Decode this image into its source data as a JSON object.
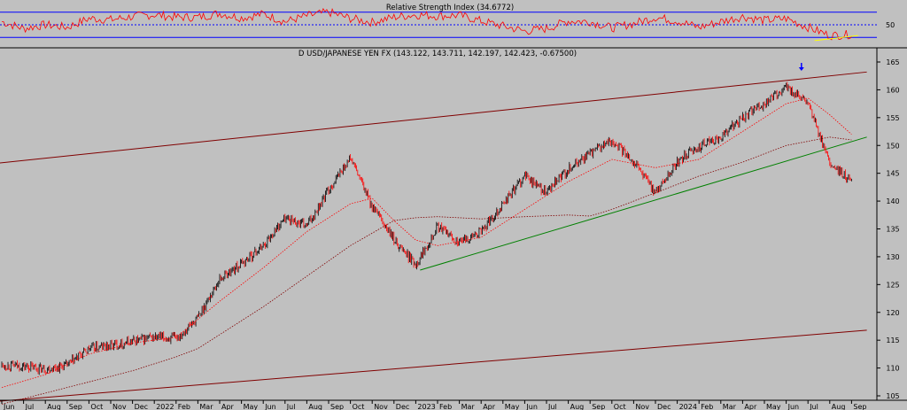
{
  "chart_data": [
    {
      "type": "line",
      "title": "Relative Strength Index (34.6772)",
      "current_value": 34.6772,
      "ylim": [
        15,
        85
      ],
      "yticks": [
        50
      ],
      "reference_lines": [
        30,
        50,
        70
      ],
      "series": [
        {
          "x_month_index": [
            0,
            1,
            2,
            3,
            4,
            5,
            6,
            7,
            8,
            9,
            10,
            11,
            12,
            13,
            14,
            15,
            16,
            17,
            18,
            19,
            20,
            21,
            22,
            23,
            24,
            25,
            26,
            27,
            28,
            29,
            30,
            31,
            32,
            33,
            34,
            35,
            36,
            37,
            38,
            39
          ],
          "values": [
            55,
            44,
            50,
            46,
            60,
            58,
            63,
            66,
            62,
            62,
            68,
            61,
            67,
            55,
            64,
            70,
            60,
            54,
            62,
            66,
            64,
            65,
            56,
            48,
            40,
            44,
            56,
            55,
            45,
            52,
            62,
            56,
            46,
            55,
            63,
            57,
            60,
            46,
            33,
            35
          ],
          "color": "#ff0000"
        },
        {
          "name": "",
          "x_month_index": [
            37.3,
            39.3
          ],
          "values": [
            25,
            33
          ],
          "color": "#ffff00"
        }
      ]
    },
    {
      "type": "line",
      "title": "D USD/JAPANESE YEN FX (143.122, 143.711, 142.197, 142.423, -0.67500)",
      "last_bar": {
        "open": 143.122,
        "high": 143.711,
        "low": 142.197,
        "close": 142.423,
        "change": -0.675
      },
      "ylim": [
        102.5,
        167
      ],
      "yticks": [
        105,
        110,
        115,
        120,
        125,
        130,
        135,
        140,
        145,
        150,
        155,
        160,
        165
      ],
      "x_labels": [
        "Jun",
        "Jul",
        "Aug",
        "Sep",
        "Oct",
        "Nov",
        "Dec",
        "2022",
        "Feb",
        "Mar",
        "Apr",
        "May",
        "Jun",
        "Jul",
        "Aug",
        "Sep",
        "Oct",
        "Nov",
        "Dec",
        "2023",
        "Feb",
        "Mar",
        "Apr",
        "May",
        "Jun",
        "Jul",
        "Aug",
        "Sep",
        "Oct",
        "Nov",
        "Dec",
        "2024",
        "Feb",
        "Mar",
        "Apr",
        "May",
        "Jun",
        "Jul",
        "Aug",
        "Sep"
      ],
      "series": [
        {
          "x_month_index": [
            0,
            1,
            2,
            3,
            4,
            5,
            6,
            7,
            8,
            9,
            10,
            11,
            12,
            13,
            14,
            15,
            16,
            17,
            18,
            19,
            20,
            21,
            22,
            23,
            24,
            25,
            26,
            27,
            28,
            29,
            30,
            31,
            32,
            33,
            34,
            35,
            36,
            37,
            38,
            39
          ],
          "values": [
            110.5,
            110.3,
            109.8,
            110.5,
            113.5,
            114.0,
            114.8,
            115.5,
            115.3,
            119.0,
            126.0,
            128.7,
            132.0,
            137.0,
            135.5,
            142.0,
            147.8,
            139.0,
            133.0,
            128.6,
            135.5,
            132.5,
            134.5,
            139.5,
            144.5,
            141.5,
            145.7,
            148.5,
            150.8,
            147.2,
            141.5,
            147.0,
            149.8,
            151.5,
            155.0,
            157.5,
            160.5,
            157.5,
            146.5,
            143.5
          ],
          "colors_up_down": [
            "#000000",
            "#ff0000"
          ]
        },
        {
          "x_month_index": [
            0,
            2,
            4,
            6,
            8,
            10,
            12,
            14,
            16,
            17,
            18,
            19,
            20,
            22,
            24,
            26,
            28,
            30,
            32,
            34,
            36,
            37,
            38,
            39
          ],
          "values": [
            106.5,
            108.8,
            112.5,
            114.5,
            115.5,
            122.0,
            128.0,
            134.5,
            139.5,
            140.5,
            136.5,
            133.0,
            132.0,
            133.5,
            138.5,
            143.5,
            147.5,
            146.0,
            147.5,
            152.5,
            157.5,
            158.5,
            155.5,
            152.0
          ],
          "color": "#ff0000",
          "style": "dotted"
        },
        {
          "x_month_index": [
            0,
            2,
            4,
            6,
            8,
            9,
            10,
            12,
            14,
            16,
            18,
            19,
            20,
            21,
            22,
            24,
            26,
            27,
            28,
            30,
            32,
            34,
            36,
            38,
            39
          ],
          "values": [
            103.5,
            105.5,
            107.5,
            109.5,
            112.0,
            113.5,
            116.0,
            121.0,
            126.5,
            132.0,
            136.5,
            137.0,
            137.2,
            137.0,
            136.8,
            137.2,
            137.5,
            137.3,
            138.5,
            141.5,
            144.5,
            147.0,
            150.0,
            151.5,
            151.0
          ],
          "color": "#800000",
          "style": "dotted"
        }
      ],
      "trendlines": [
        {
          "x_month_index": [
            -0.2,
            39.7
          ],
          "values": [
            146.8,
            163.2
          ],
          "color": "#800000"
        },
        {
          "x_month_index": [
            -0.2,
            39.7
          ],
          "values": [
            104.0,
            116.8
          ],
          "color": "#800000"
        },
        {
          "x_month_index": [
            19.2,
            39.7
          ],
          "values": [
            127.6,
            151.5
          ],
          "color": "#008000"
        }
      ],
      "annotations": [
        {
          "type": "arrow-down",
          "x_month_index": 36.7,
          "value": 164.2,
          "color": "#0000ff"
        }
      ]
    }
  ]
}
